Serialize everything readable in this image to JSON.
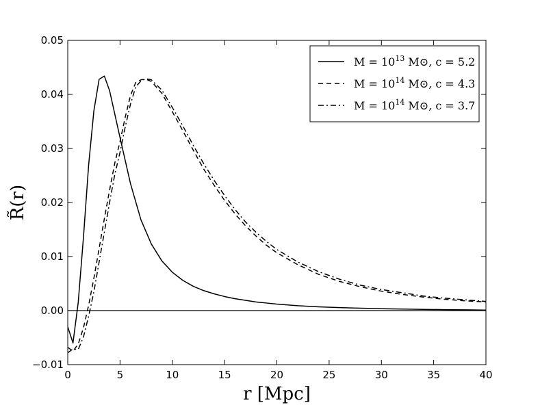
{
  "chart_data": {
    "type": "line",
    "xlabel": "r [Mpc]",
    "ylabel": "R̃(r)",
    "xlim": [
      0,
      40
    ],
    "ylim": [
      -0.01,
      0.05
    ],
    "xticks": [
      0,
      5,
      10,
      15,
      20,
      25,
      30,
      35,
      40
    ],
    "yticks": [
      -0.01,
      0.0,
      0.01,
      0.02,
      0.03,
      0.04,
      0.05
    ],
    "ytick_labels": [
      "−0.01",
      "0.00",
      "0.01",
      "0.02",
      "0.03",
      "0.04",
      "0.05"
    ],
    "grid": false,
    "legend_position": "top-right",
    "reference_line_y": 0.0,
    "series": [
      {
        "name": "M = 10^13 M⊙, c = 5.2",
        "legend": {
          "base": "M = 10",
          "exp": "13",
          "tail": " M⊙, c = 5.2"
        },
        "style": "solid",
        "x": [
          0,
          0.5,
          1,
          1.5,
          2,
          2.5,
          3,
          3.5,
          4,
          5,
          6,
          7,
          8,
          9,
          10,
          11,
          12,
          13,
          14,
          15,
          16,
          17,
          18,
          19,
          20,
          22,
          24,
          26,
          28,
          30,
          32,
          34,
          36,
          38,
          40
        ],
        "y": [
          -0.003,
          -0.006,
          0.0015,
          0.0135,
          0.027,
          0.037,
          0.0428,
          0.0434,
          0.0407,
          0.032,
          0.0235,
          0.0168,
          0.0123,
          0.0092,
          0.0071,
          0.0056,
          0.0045,
          0.0037,
          0.0031,
          0.0026,
          0.0022,
          0.0019,
          0.0016,
          0.0014,
          0.0012,
          0.0009,
          0.0007,
          0.00055,
          0.00045,
          0.00035,
          0.00028,
          0.00022,
          0.00018,
          0.00014,
          0.0001
        ]
      },
      {
        "name": "M = 10^14 M⊙, c = 4.3",
        "legend": {
          "base": "M = 10",
          "exp": "14",
          "tail": " M⊙, c = 4.3"
        },
        "style": "dashed",
        "x": [
          0,
          0.5,
          1,
          1.5,
          2,
          2.5,
          3,
          3.5,
          4,
          4.5,
          5,
          5.5,
          6,
          6.5,
          7,
          7.5,
          8,
          9,
          10,
          11,
          12,
          13,
          14,
          15,
          16,
          17,
          18,
          19,
          20,
          22,
          24,
          26,
          28,
          30,
          32,
          34,
          36,
          38,
          40
        ],
        "y": [
          -0.0068,
          -0.0075,
          -0.0062,
          -0.0032,
          0.001,
          0.006,
          0.0115,
          0.017,
          0.0223,
          0.0273,
          0.0313,
          0.0358,
          0.0398,
          0.0422,
          0.0427,
          0.0428,
          0.0424,
          0.0402,
          0.0368,
          0.0333,
          0.0297,
          0.0262,
          0.0232,
          0.0204,
          0.0179,
          0.0157,
          0.0138,
          0.0121,
          0.0107,
          0.0085,
          0.0067,
          0.0054,
          0.0044,
          0.0036,
          0.003,
          0.0025,
          0.0021,
          0.0018,
          0.0016
        ]
      },
      {
        "name": "M = 10^14 M⊙, c = 3.7",
        "legend": {
          "base": "M = 10",
          "exp": "14",
          "tail": " M⊙, c = 3.7"
        },
        "style": "dashdot",
        "x": [
          0,
          0.5,
          1,
          1.5,
          2,
          2.5,
          3,
          3.5,
          4,
          4.5,
          5,
          5.5,
          6,
          6.5,
          7,
          7.5,
          8,
          9,
          10,
          11,
          12,
          13,
          14,
          15,
          16,
          17,
          18,
          19,
          20,
          22,
          24,
          26,
          28,
          30,
          32,
          34,
          36,
          38,
          40
        ],
        "y": [
          -0.0078,
          -0.0071,
          -0.0072,
          -0.0049,
          -0.001,
          0.0035,
          0.009,
          0.0145,
          0.02,
          0.0252,
          0.0293,
          0.034,
          0.0382,
          0.0414,
          0.0425,
          0.0429,
          0.0427,
          0.0408,
          0.0376,
          0.0342,
          0.0306,
          0.0272,
          0.0241,
          0.0213,
          0.0187,
          0.0164,
          0.0145,
          0.0128,
          0.0113,
          0.009,
          0.0072,
          0.0058,
          0.0047,
          0.0039,
          0.0033,
          0.0027,
          0.0023,
          0.002,
          0.0017
        ]
      }
    ]
  }
}
